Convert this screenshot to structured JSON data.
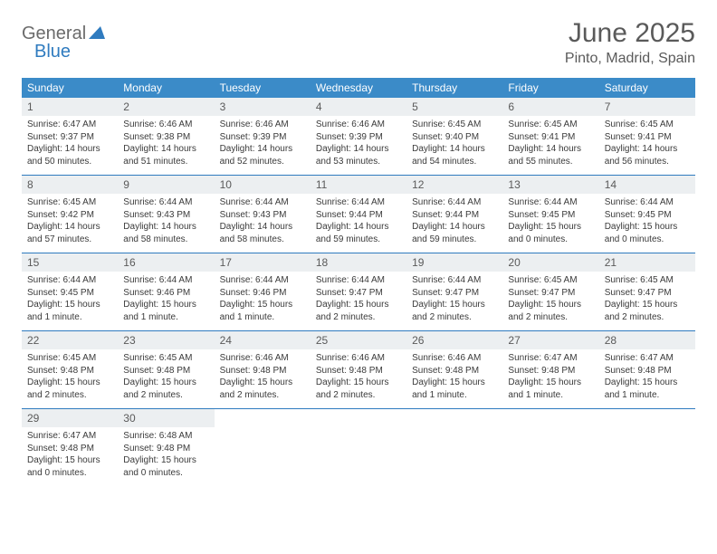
{
  "brand": {
    "part1": "General",
    "part2": "Blue"
  },
  "title": "June 2025",
  "location": "Pinto, Madrid, Spain",
  "colors": {
    "header_bg": "#3b8bc8",
    "header_text": "#ffffff",
    "rule": "#2f7bbf",
    "daynum_bg": "#eceff1",
    "text": "#3a3a3a",
    "title_text": "#5a5a5a",
    "logo_gray": "#6b6b6b",
    "logo_blue": "#2f7bbf"
  },
  "dow": [
    "Sunday",
    "Monday",
    "Tuesday",
    "Wednesday",
    "Thursday",
    "Friday",
    "Saturday"
  ],
  "weeks": [
    [
      {
        "n": "1",
        "sr": "Sunrise: 6:47 AM",
        "ss": "Sunset: 9:37 PM",
        "dl": "Daylight: 14 hours and 50 minutes."
      },
      {
        "n": "2",
        "sr": "Sunrise: 6:46 AM",
        "ss": "Sunset: 9:38 PM",
        "dl": "Daylight: 14 hours and 51 minutes."
      },
      {
        "n": "3",
        "sr": "Sunrise: 6:46 AM",
        "ss": "Sunset: 9:39 PM",
        "dl": "Daylight: 14 hours and 52 minutes."
      },
      {
        "n": "4",
        "sr": "Sunrise: 6:46 AM",
        "ss": "Sunset: 9:39 PM",
        "dl": "Daylight: 14 hours and 53 minutes."
      },
      {
        "n": "5",
        "sr": "Sunrise: 6:45 AM",
        "ss": "Sunset: 9:40 PM",
        "dl": "Daylight: 14 hours and 54 minutes."
      },
      {
        "n": "6",
        "sr": "Sunrise: 6:45 AM",
        "ss": "Sunset: 9:41 PM",
        "dl": "Daylight: 14 hours and 55 minutes."
      },
      {
        "n": "7",
        "sr": "Sunrise: 6:45 AM",
        "ss": "Sunset: 9:41 PM",
        "dl": "Daylight: 14 hours and 56 minutes."
      }
    ],
    [
      {
        "n": "8",
        "sr": "Sunrise: 6:45 AM",
        "ss": "Sunset: 9:42 PM",
        "dl": "Daylight: 14 hours and 57 minutes."
      },
      {
        "n": "9",
        "sr": "Sunrise: 6:44 AM",
        "ss": "Sunset: 9:43 PM",
        "dl": "Daylight: 14 hours and 58 minutes."
      },
      {
        "n": "10",
        "sr": "Sunrise: 6:44 AM",
        "ss": "Sunset: 9:43 PM",
        "dl": "Daylight: 14 hours and 58 minutes."
      },
      {
        "n": "11",
        "sr": "Sunrise: 6:44 AM",
        "ss": "Sunset: 9:44 PM",
        "dl": "Daylight: 14 hours and 59 minutes."
      },
      {
        "n": "12",
        "sr": "Sunrise: 6:44 AM",
        "ss": "Sunset: 9:44 PM",
        "dl": "Daylight: 14 hours and 59 minutes."
      },
      {
        "n": "13",
        "sr": "Sunrise: 6:44 AM",
        "ss": "Sunset: 9:45 PM",
        "dl": "Daylight: 15 hours and 0 minutes."
      },
      {
        "n": "14",
        "sr": "Sunrise: 6:44 AM",
        "ss": "Sunset: 9:45 PM",
        "dl": "Daylight: 15 hours and 0 minutes."
      }
    ],
    [
      {
        "n": "15",
        "sr": "Sunrise: 6:44 AM",
        "ss": "Sunset: 9:45 PM",
        "dl": "Daylight: 15 hours and 1 minute."
      },
      {
        "n": "16",
        "sr": "Sunrise: 6:44 AM",
        "ss": "Sunset: 9:46 PM",
        "dl": "Daylight: 15 hours and 1 minute."
      },
      {
        "n": "17",
        "sr": "Sunrise: 6:44 AM",
        "ss": "Sunset: 9:46 PM",
        "dl": "Daylight: 15 hours and 1 minute."
      },
      {
        "n": "18",
        "sr": "Sunrise: 6:44 AM",
        "ss": "Sunset: 9:47 PM",
        "dl": "Daylight: 15 hours and 2 minutes."
      },
      {
        "n": "19",
        "sr": "Sunrise: 6:44 AM",
        "ss": "Sunset: 9:47 PM",
        "dl": "Daylight: 15 hours and 2 minutes."
      },
      {
        "n": "20",
        "sr": "Sunrise: 6:45 AM",
        "ss": "Sunset: 9:47 PM",
        "dl": "Daylight: 15 hours and 2 minutes."
      },
      {
        "n": "21",
        "sr": "Sunrise: 6:45 AM",
        "ss": "Sunset: 9:47 PM",
        "dl": "Daylight: 15 hours and 2 minutes."
      }
    ],
    [
      {
        "n": "22",
        "sr": "Sunrise: 6:45 AM",
        "ss": "Sunset: 9:48 PM",
        "dl": "Daylight: 15 hours and 2 minutes."
      },
      {
        "n": "23",
        "sr": "Sunrise: 6:45 AM",
        "ss": "Sunset: 9:48 PM",
        "dl": "Daylight: 15 hours and 2 minutes."
      },
      {
        "n": "24",
        "sr": "Sunrise: 6:46 AM",
        "ss": "Sunset: 9:48 PM",
        "dl": "Daylight: 15 hours and 2 minutes."
      },
      {
        "n": "25",
        "sr": "Sunrise: 6:46 AM",
        "ss": "Sunset: 9:48 PM",
        "dl": "Daylight: 15 hours and 2 minutes."
      },
      {
        "n": "26",
        "sr": "Sunrise: 6:46 AM",
        "ss": "Sunset: 9:48 PM",
        "dl": "Daylight: 15 hours and 1 minute."
      },
      {
        "n": "27",
        "sr": "Sunrise: 6:47 AM",
        "ss": "Sunset: 9:48 PM",
        "dl": "Daylight: 15 hours and 1 minute."
      },
      {
        "n": "28",
        "sr": "Sunrise: 6:47 AM",
        "ss": "Sunset: 9:48 PM",
        "dl": "Daylight: 15 hours and 1 minute."
      }
    ],
    [
      {
        "n": "29",
        "sr": "Sunrise: 6:47 AM",
        "ss": "Sunset: 9:48 PM",
        "dl": "Daylight: 15 hours and 0 minutes."
      },
      {
        "n": "30",
        "sr": "Sunrise: 6:48 AM",
        "ss": "Sunset: 9:48 PM",
        "dl": "Daylight: 15 hours and 0 minutes."
      },
      {
        "empty": true
      },
      {
        "empty": true
      },
      {
        "empty": true
      },
      {
        "empty": true
      },
      {
        "empty": true
      }
    ]
  ]
}
